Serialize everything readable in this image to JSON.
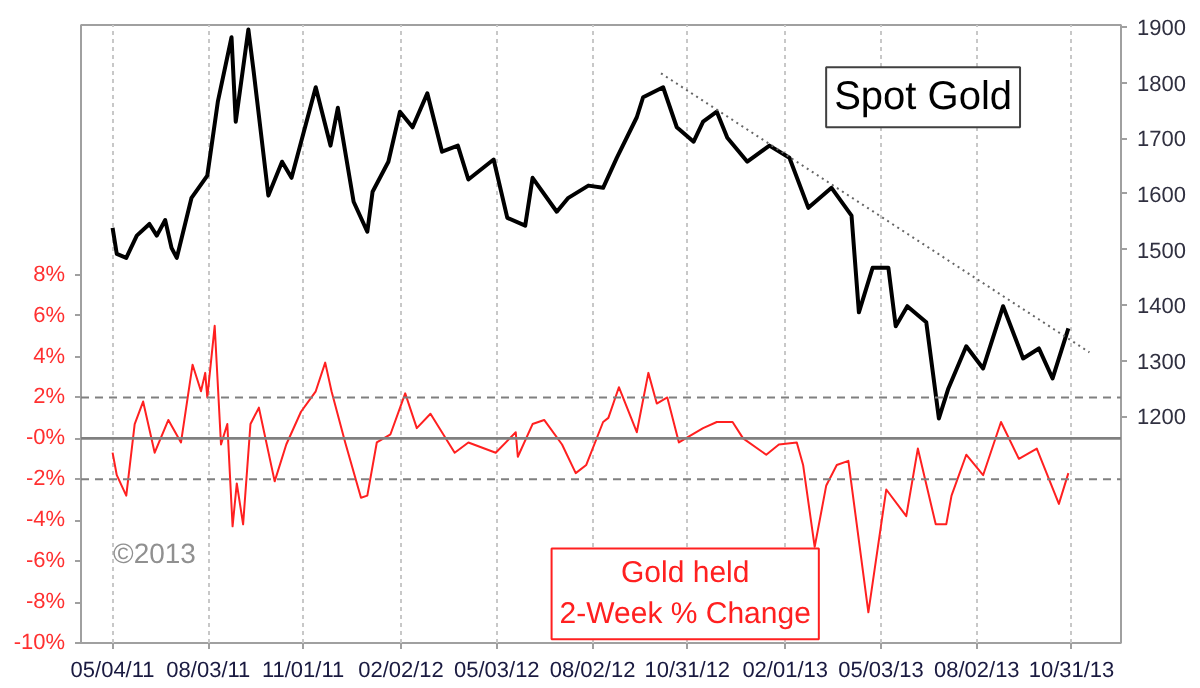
{
  "chart_data": {
    "type": "line",
    "annotations": [
      "©2013"
    ],
    "grid": "x",
    "xlim": [
      "2011-04-04",
      "2013-12-17"
    ],
    "xticks": [
      {
        "value": "2011-05-04",
        "label": "05/04/11"
      },
      {
        "value": "2011-08-03",
        "label": "08/03/11"
      },
      {
        "value": "2011-11-01",
        "label": "11/01/11"
      },
      {
        "value": "2012-02-02",
        "label": "02/02/12"
      },
      {
        "value": "2012-05-03",
        "label": "05/03/12"
      },
      {
        "value": "2012-08-02",
        "label": "08/02/12"
      },
      {
        "value": "2012-10-31",
        "label": "10/31/12"
      },
      {
        "value": "2013-02-01",
        "label": "02/01/13"
      },
      {
        "value": "2013-05-03",
        "label": "05/03/13"
      },
      {
        "value": "2013-08-02",
        "label": "08/02/13"
      },
      {
        "value": "2013-10-31",
        "label": "10/31/13"
      }
    ],
    "ylim": [
      -10,
      20.2
    ],
    "yticks": [
      {
        "value": 8,
        "label": "8%"
      },
      {
        "value": 6,
        "label": "6%"
      },
      {
        "value": 4,
        "label": "4%"
      },
      {
        "value": 2,
        "label": "2%"
      },
      {
        "value": 0,
        "label": "-0%"
      },
      {
        "value": -2,
        "label": "-2%"
      },
      {
        "value": -4,
        "label": "-4%"
      },
      {
        "value": -6,
        "label": "-6%"
      },
      {
        "value": -8,
        "label": "-8%"
      },
      {
        "value": -10,
        "label": "-10%"
      }
    ],
    "y2lim": [
      792,
      1904
    ],
    "y2ticks": [
      1200,
      1300,
      1400,
      1500,
      1600,
      1700,
      1800,
      1900
    ],
    "ref_lines": [
      {
        "axis": "y",
        "value": 2,
        "color": "#808080",
        "line_style": "dashed"
      },
      {
        "axis": "y",
        "value": 0,
        "color": "#808080",
        "line_style": "solid"
      },
      {
        "axis": "y",
        "value": -2,
        "color": "#808080",
        "line_style": "dashed"
      }
    ],
    "series": [
      {
        "name": "Spot Gold",
        "axis": "y2",
        "color": "#000000",
        "x": [
          "2011-05-04",
          "2011-05-08",
          "2011-05-17",
          "2011-05-27",
          "2011-06-08",
          "2011-06-15",
          "2011-06-23",
          "2011-06-29",
          "2011-07-04",
          "2011-07-18",
          "2011-08-02",
          "2011-08-12",
          "2011-08-25",
          "2011-08-29",
          "2011-09-10",
          "2011-09-15",
          "2011-09-29",
          "2011-10-12",
          "2011-10-21",
          "2011-11-13",
          "2011-11-27",
          "2011-12-04",
          "2011-12-19",
          "2012-01-01",
          "2012-01-06",
          "2012-01-21",
          "2012-02-01",
          "2012-02-13",
          "2012-02-27",
          "2012-03-12",
          "2012-03-27",
          "2012-04-06",
          "2012-04-30",
          "2012-05-13",
          "2012-05-30",
          "2012-06-06",
          "2012-06-29",
          "2012-07-10",
          "2012-07-29",
          "2012-08-12",
          "2012-08-25",
          "2012-09-13",
          "2012-09-19",
          "2012-10-08",
          "2012-10-21",
          "2012-11-06",
          "2012-11-15",
          "2012-11-28",
          "2012-12-08",
          "2012-12-27",
          "2013-01-17",
          "2013-02-05",
          "2013-02-23",
          "2013-03-17",
          "2013-04-05",
          "2013-04-12",
          "2013-04-25",
          "2013-05-10",
          "2013-05-17",
          "2013-05-28",
          "2013-06-15",
          "2013-06-27",
          "2013-07-06",
          "2013-07-23",
          "2013-08-08",
          "2013-08-27",
          "2013-09-15",
          "2013-09-30",
          "2013-10-13",
          "2013-10-28"
        ],
        "values": [
          1539,
          1492,
          1485,
          1525,
          1546,
          1525,
          1553,
          1503,
          1485,
          1593,
          1633,
          1766,
          1882,
          1730,
          1896,
          1821,
          1597,
          1658,
          1629,
          1792,
          1687,
          1755,
          1586,
          1532,
          1604,
          1658,
          1748,
          1720,
          1781,
          1676,
          1687,
          1626,
          1662,
          1557,
          1543,
          1629,
          1568,
          1593,
          1615,
          1611,
          1665,
          1738,
          1774,
          1792,
          1720,
          1694,
          1730,
          1748,
          1701,
          1658,
          1687,
          1665,
          1575,
          1611,
          1561,
          1387,
          1467,
          1467,
          1362,
          1398,
          1369,
          1196,
          1250,
          1326,
          1286,
          1398,
          1304,
          1322,
          1268,
          1358
        ]
      },
      {
        "axis": "y2",
        "color": "#666666",
        "line_style": "dotted",
        "x": [
          "2012-10-06",
          "2013-11-17"
        ],
        "values": [
          1817,
          1315
        ]
      },
      {
        "name": "Gold held\n2-Week % Change",
        "axis": "y",
        "color": "#ff2020",
        "x": [
          "2011-05-04",
          "2011-05-08",
          "2011-05-17",
          "2011-05-25",
          "2011-06-02",
          "2011-06-13",
          "2011-06-26",
          "2011-07-08",
          "2011-07-19",
          "2011-07-27",
          "2011-07-31",
          "2011-08-02",
          "2011-08-09",
          "2011-08-15",
          "2011-08-21",
          "2011-08-26",
          "2011-08-30",
          "2011-09-05",
          "2011-09-12",
          "2011-09-20",
          "2011-10-05",
          "2011-10-16",
          "2011-10-30",
          "2011-11-13",
          "2011-11-22",
          "2011-11-28",
          "2011-12-11",
          "2011-12-26",
          "2012-01-01",
          "2012-01-10",
          "2012-01-23",
          "2012-02-06",
          "2012-02-17",
          "2012-03-01",
          "2012-03-24",
          "2012-04-06",
          "2012-05-02",
          "2012-05-21",
          "2012-05-23",
          "2012-06-06",
          "2012-06-17",
          "2012-07-04",
          "2012-07-17",
          "2012-07-27",
          "2012-08-12",
          "2012-08-17",
          "2012-08-27",
          "2012-09-13",
          "2012-09-24",
          "2012-10-02",
          "2012-10-12",
          "2012-10-23",
          "2012-11-15",
          "2012-11-28",
          "2012-12-13",
          "2012-12-23",
          "2013-01-14",
          "2013-01-26",
          "2013-02-12",
          "2013-02-18",
          "2013-03-01",
          "2013-03-12",
          "2013-03-22",
          "2013-04-02",
          "2013-04-21",
          "2013-05-08",
          "2013-05-27",
          "2013-06-07",
          "2013-06-24",
          "2013-07-04",
          "2013-07-09",
          "2013-07-23",
          "2013-08-08",
          "2013-08-25",
          "2013-09-11",
          "2013-09-28",
          "2013-10-19",
          "2013-10-28"
        ],
        "values": [
          -0.7,
          -1.8,
          -2.8,
          0.7,
          1.8,
          -0.7,
          0.9,
          -0.2,
          3.6,
          2.3,
          3.2,
          2.0,
          5.5,
          -0.3,
          0.7,
          -4.3,
          -2.2,
          -4.2,
          0.7,
          1.5,
          -2.1,
          -0.3,
          1.3,
          2.3,
          3.7,
          2.3,
          -0.2,
          -2.9,
          -2.8,
          -0.2,
          0.2,
          2.2,
          0.5,
          1.2,
          -0.7,
          -0.2,
          -0.7,
          0.3,
          -0.9,
          0.7,
          0.9,
          -0.3,
          -1.7,
          -1.3,
          0.8,
          1.0,
          2.5,
          0.3,
          3.2,
          1.7,
          2.0,
          -0.2,
          0.5,
          0.8,
          0.8,
          0.0,
          -0.8,
          -0.3,
          -0.2,
          -1.3,
          -5.3,
          -2.3,
          -1.3,
          -1.1,
          -8.5,
          -2.5,
          -3.8,
          -0.5,
          -4.2,
          -4.2,
          -2.8,
          -0.8,
          -1.8,
          0.8,
          -1.0,
          -0.5,
          -3.2,
          -1.7
        ]
      }
    ]
  }
}
